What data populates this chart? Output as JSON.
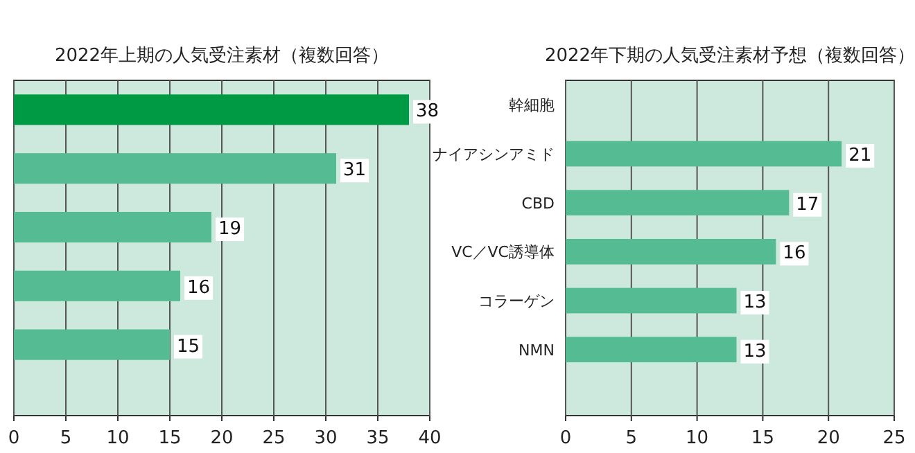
{
  "chart_data": [
    {
      "type": "bar",
      "orientation": "horizontal",
      "title": "2022年上期の人気受注素材（複数回答）",
      "categories": [
        null,
        null,
        null,
        null,
        null
      ],
      "values": [
        38,
        31,
        19,
        16,
        15
      ],
      "colors": [
        "#009a44",
        "#55bb93",
        "#55bb93",
        "#55bb93",
        "#55bb93"
      ],
      "xlim": [
        0,
        40
      ],
      "xticks": [
        0,
        5,
        10,
        15,
        20,
        25,
        30,
        35,
        40
      ],
      "grid": "x",
      "data_labels": true
    },
    {
      "type": "bar",
      "orientation": "horizontal",
      "title": "2022年下期の人気受注素材予想（複数回答）",
      "categories": [
        "幹細胞",
        "ナイアシンアミド",
        "CBD",
        "VC／VC誘導体",
        "コラーゲン",
        "NMN"
      ],
      "values": [
        null,
        21,
        17,
        16,
        13,
        13
      ],
      "value_labels": [
        null,
        "21",
        "17",
        "16",
        "13",
        "13"
      ],
      "colors": [
        null,
        "#55bb93",
        "#55bb93",
        "#55bb93",
        "#55bb93",
        "#55bb93"
      ],
      "xlim": [
        0,
        25
      ],
      "xticks": [
        0,
        5,
        10,
        15,
        20,
        25
      ],
      "grid": "x"
    }
  ]
}
